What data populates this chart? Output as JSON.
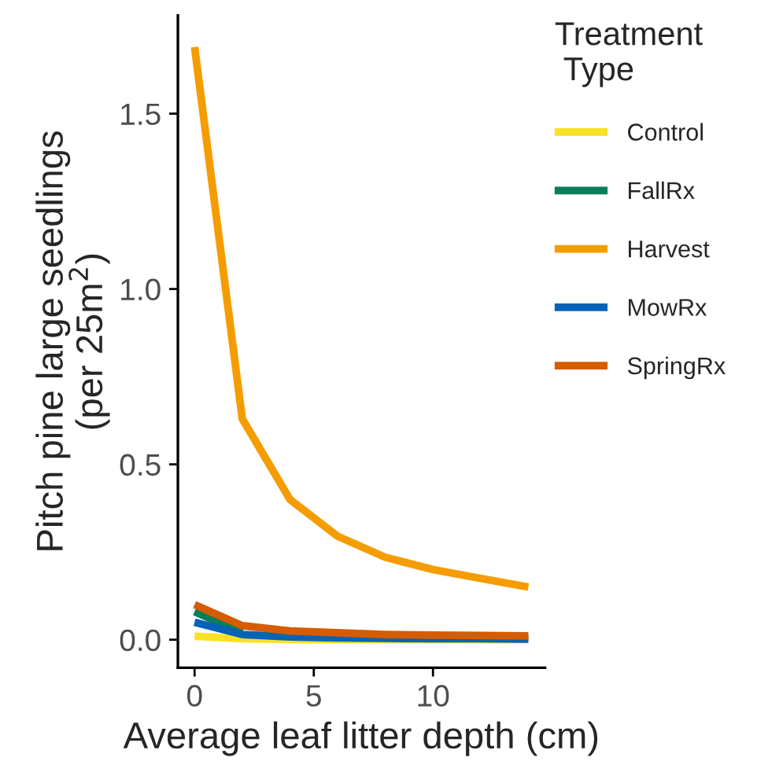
{
  "chart_data": {
    "type": "line",
    "xlabel": "Average leaf litter depth (cm)",
    "ylabel": "Pitch pine large seedlings\n(per 25m$^{2}$)",
    "legend_title": "Treatment\n Type",
    "x": [
      0,
      2,
      4,
      6,
      8,
      10,
      12,
      14
    ],
    "series": [
      {
        "name": "Control",
        "color": "#f9e125",
        "values": [
          0.01,
          0.003,
          0.001,
          0.0,
          0.0,
          0.0,
          0.0,
          0.0
        ]
      },
      {
        "name": "FallRx",
        "color": "#0a7d5b",
        "values": [
          0.08,
          0.02,
          null,
          null,
          null,
          null,
          null,
          null
        ]
      },
      {
        "name": "Harvest",
        "color": "#f59c00",
        "values": [
          1.69,
          0.63,
          0.4,
          0.295,
          0.235,
          0.2,
          0.175,
          0.15
        ]
      },
      {
        "name": "MowRx",
        "color": "#0563b5",
        "values": [
          0.05,
          0.015,
          0.008,
          0.005,
          0.004,
          0.003,
          0.003,
          0.002
        ]
      },
      {
        "name": "SpringRx",
        "color": "#d55c00",
        "values": [
          0.1,
          0.04,
          0.025,
          0.02,
          0.015,
          0.013,
          0.012,
          0.011
        ]
      }
    ],
    "xlim": [
      -0.7,
      14.7
    ],
    "ylim": [
      -0.08,
      1.78
    ],
    "xticks": [
      0,
      5,
      10
    ],
    "yticks": [
      {
        "value": 0,
        "label": "0.0"
      },
      0.5,
      {
        "value": 1,
        "label": "1.0"
      },
      1.5
    ],
    "grid": false,
    "legend": "right",
    "marker": "none",
    "line_style": "solid"
  }
}
